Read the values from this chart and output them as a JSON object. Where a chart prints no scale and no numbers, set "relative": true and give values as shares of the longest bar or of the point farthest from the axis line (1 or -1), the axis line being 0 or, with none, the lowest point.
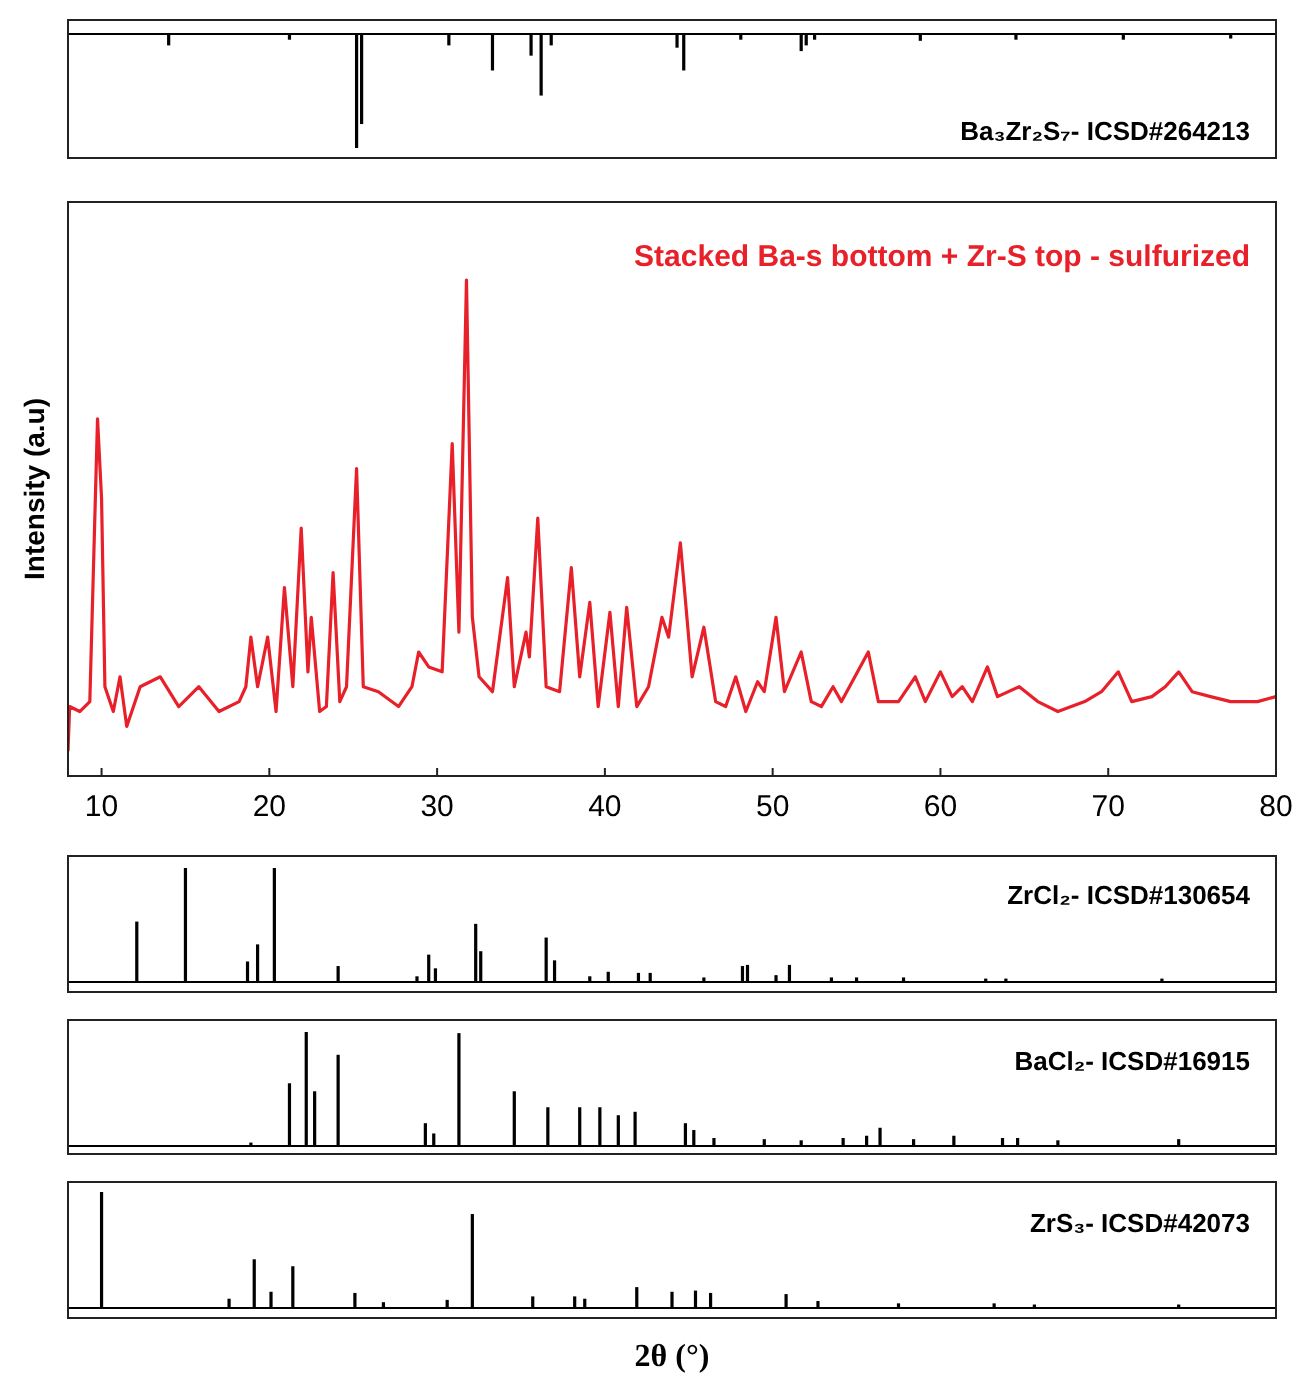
{
  "chart_data": [
    {
      "type": "bar",
      "relative": true,
      "xlim": [
        8,
        80
      ],
      "tick_labels": false,
      "series": [
        {
          "name": "Ba₃Zr₂S₇- ICSD#264213",
          "color": "#000000",
          "x": [
            14.0,
            21.2,
            25.2,
            25.5,
            30.7,
            33.3,
            35.6,
            36.2,
            36.8,
            44.3,
            44.7,
            48.1,
            51.7,
            52.0,
            52.5,
            58.8,
            64.5,
            70.9,
            77.3
          ],
          "values": [
            -0.1,
            -0.05,
            -1,
            -0.79,
            -0.1,
            -0.32,
            -0.19,
            -0.54,
            -0.1,
            -0.12,
            -0.32,
            -0.05,
            -0.15,
            -0.1,
            -0.05,
            -0.06,
            -0.05,
            -0.05,
            -0.04
          ]
        }
      ]
    },
    {
      "type": "line",
      "relative": true,
      "xlim": [
        8,
        80
      ],
      "xticks": [
        10,
        20,
        30,
        40,
        50,
        60,
        70,
        80
      ],
      "tick_labels": "x",
      "ylabel": "Intensity (a.u)",
      "series": [
        {
          "name": "Stacked Ba-s bottom + Zr-S top - sulfurized",
          "color": "#e8202a",
          "x": [
            8.0,
            8.1,
            8.7,
            9.3,
            9.76,
            10.0,
            10.2,
            10.7,
            11.1,
            11.5,
            12.3,
            13.5,
            14.6,
            15.8,
            17.0,
            18.2,
            18.6,
            18.9,
            19.3,
            19.9,
            20.4,
            20.9,
            21.4,
            21.9,
            22.3,
            22.5,
            23.0,
            23.4,
            23.8,
            24.2,
            24.6,
            25.2,
            25.6,
            26.5,
            27.7,
            28.5,
            28.9,
            29.5,
            30.3,
            30.9,
            31.3,
            31.75,
            32.1,
            32.5,
            33.3,
            34.2,
            34.6,
            35.3,
            35.5,
            36.0,
            36.5,
            37.3,
            38.0,
            38.5,
            39.1,
            39.6,
            40.3,
            40.8,
            41.3,
            41.9,
            42.6,
            43.4,
            43.8,
            44.5,
            45.2,
            45.9,
            46.6,
            47.2,
            47.8,
            48.4,
            49.1,
            49.5,
            50.2,
            50.7,
            51.7,
            52.3,
            52.9,
            53.6,
            54.1,
            54.9,
            55.7,
            56.3,
            57.5,
            58.5,
            59.1,
            60.0,
            60.7,
            61.3,
            61.9,
            62.8,
            63.4,
            64.7,
            65.8,
            67.0,
            68.6,
            69.6,
            70.6,
            71.4,
            72.6,
            73.4,
            74.2,
            75.0,
            76.1,
            77.3,
            78.9,
            80.0
          ],
          "values": [
            0.05,
            0.14,
            0.13,
            0.15,
            0.72,
            0.56,
            0.18,
            0.13,
            0.2,
            0.1,
            0.18,
            0.2,
            0.14,
            0.18,
            0.13,
            0.15,
            0.18,
            0.28,
            0.18,
            0.28,
            0.13,
            0.38,
            0.18,
            0.5,
            0.21,
            0.32,
            0.13,
            0.14,
            0.41,
            0.15,
            0.18,
            0.62,
            0.18,
            0.17,
            0.14,
            0.18,
            0.25,
            0.22,
            0.21,
            0.67,
            0.29,
            1,
            0.32,
            0.2,
            0.17,
            0.4,
            0.18,
            0.29,
            0.24,
            0.52,
            0.18,
            0.17,
            0.42,
            0.2,
            0.35,
            0.14,
            0.33,
            0.14,
            0.34,
            0.14,
            0.18,
            0.32,
            0.28,
            0.47,
            0.2,
            0.3,
            0.15,
            0.14,
            0.2,
            0.13,
            0.19,
            0.17,
            0.32,
            0.17,
            0.25,
            0.15,
            0.14,
            0.18,
            0.15,
            0.2,
            0.25,
            0.15,
            0.15,
            0.2,
            0.15,
            0.21,
            0.16,
            0.18,
            0.15,
            0.22,
            0.16,
            0.18,
            0.15,
            0.13,
            0.15,
            0.17,
            0.21,
            0.15,
            0.16,
            0.18,
            0.21,
            0.17,
            0.16,
            0.15,
            0.15,
            0.16
          ]
        }
      ]
    },
    {
      "type": "bar",
      "relative": true,
      "xlim": [
        8,
        80
      ],
      "tick_labels": false,
      "series": [
        {
          "name": "ZrCl₂- ICSD#130654",
          "color": "#000000",
          "x": [
            12.1,
            15.0,
            18.7,
            19.3,
            20.3,
            24.1,
            28.8,
            29.5,
            29.9,
            32.3,
            32.6,
            36.5,
            37.0,
            39.1,
            40.2,
            42.0,
            42.7,
            45.9,
            48.2,
            48.5,
            50.2,
            51.0,
            53.5,
            55.0,
            57.8,
            62.7,
            63.9,
            73.2
          ],
          "values": [
            0.53,
            1,
            0.18,
            0.33,
            1,
            0.14,
            0.05,
            0.24,
            0.12,
            0.51,
            0.27,
            0.39,
            0.19,
            0.05,
            0.09,
            0.08,
            0.08,
            0.04,
            0.14,
            0.15,
            0.06,
            0.15,
            0.04,
            0.04,
            0.04,
            0.03,
            0.03,
            0.03
          ]
        }
      ]
    },
    {
      "type": "bar",
      "relative": true,
      "xlim": [
        8,
        80
      ],
      "tick_labels": false,
      "series": [
        {
          "name": "BaCl₂- ICSD#16915",
          "color": "#000000",
          "x": [
            18.9,
            21.2,
            22.2,
            22.7,
            24.1,
            29.3,
            29.8,
            31.3,
            34.6,
            36.6,
            38.5,
            39.7,
            40.8,
            41.8,
            44.8,
            45.3,
            46.5,
            49.5,
            51.7,
            54.2,
            55.6,
            56.4,
            58.4,
            60.8,
            63.7,
            64.6,
            67.0,
            74.2
          ],
          "values": [
            0.03,
            0.55,
            1,
            0.48,
            0.8,
            0.2,
            0.11,
            0.99,
            0.48,
            0.34,
            0.34,
            0.34,
            0.27,
            0.3,
            0.2,
            0.14,
            0.07,
            0.06,
            0.05,
            0.07,
            0.09,
            0.16,
            0.06,
            0.09,
            0.07,
            0.07,
            0.05,
            0.06
          ]
        }
      ]
    },
    {
      "type": "bar",
      "relative": true,
      "xlim": [
        8,
        80
      ],
      "tick_labels": false,
      "xlabel": "2θ (°)",
      "series": [
        {
          "name": "ZrS₃- ICSD#42073",
          "color": "#000000",
          "x": [
            10.0,
            17.6,
            19.1,
            20.1,
            21.4,
            25.1,
            26.8,
            30.6,
            32.1,
            35.7,
            38.2,
            38.8,
            41.9,
            44.0,
            45.4,
            46.3,
            50.8,
            52.7,
            57.5,
            63.2,
            65.6,
            74.2
          ],
          "values": [
            1,
            0.08,
            0.42,
            0.14,
            0.36,
            0.13,
            0.05,
            0.07,
            0.81,
            0.1,
            0.1,
            0.08,
            0.18,
            0.14,
            0.15,
            0.13,
            0.12,
            0.06,
            0.04,
            0.04,
            0.03,
            0.03
          ]
        }
      ]
    }
  ]
}
